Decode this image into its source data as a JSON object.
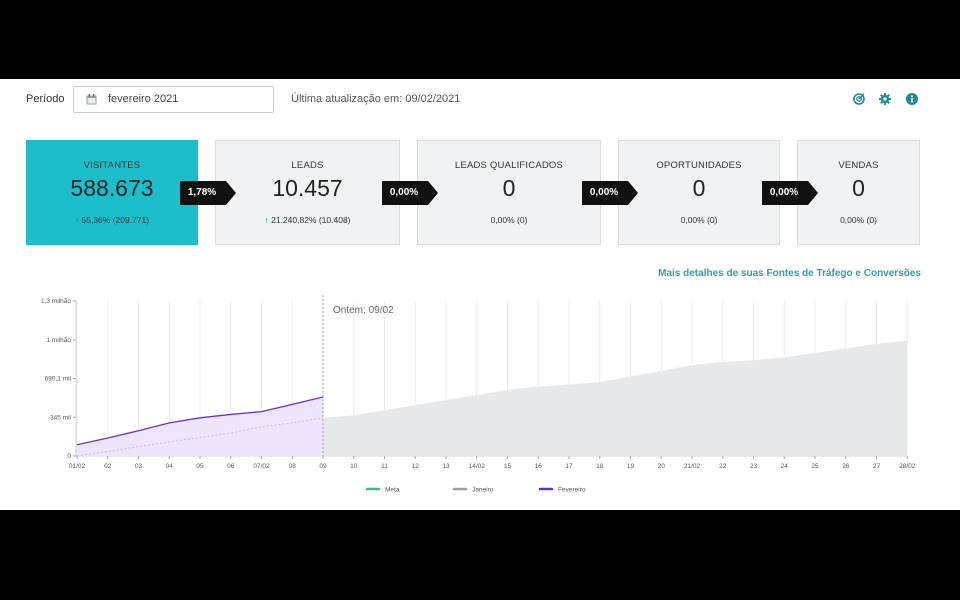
{
  "filter": {
    "periodo_label": "Período",
    "period_value": "fevereiro 2021",
    "update_text": "Última atualização em: 09/02/2021"
  },
  "toolbar": {
    "icons": [
      "target-icon",
      "gear-icon",
      "info-icon"
    ],
    "accent_color": "#1e8a9a"
  },
  "funnel": {
    "cards": [
      {
        "title": "VISITANTES",
        "value": "588.673",
        "sub": "55,36% (209.771)"
      },
      {
        "title": "LEADS",
        "value": "10.457",
        "sub": "21.240,82% (10.408)"
      },
      {
        "title": "LEADS QUALIFICADOS",
        "value": "0",
        "sub": "0,00% (0)"
      },
      {
        "title": "OPORTUNIDADES",
        "value": "0",
        "sub": "0,00% (0)"
      },
      {
        "title": "VENDAS",
        "value": "0",
        "sub": "0,00% (0)"
      }
    ],
    "conversions": [
      "1,78%",
      "0,00%",
      "0,00%",
      "0,00%"
    ],
    "active_color": "#1bbfcc"
  },
  "details_link": "Mais detalhes de suas Fontes de Tráfego e Conversões",
  "chart_data": {
    "type": "area",
    "y_ticks": [
      "0",
      "345 mil",
      "690,1 mil",
      "1 milhão",
      "1,3 milhão"
    ],
    "ylim": [
      0,
      1380000
    ],
    "x_labels": [
      "01/02",
      "02",
      "03",
      "04",
      "05",
      "06",
      "07/02",
      "08",
      "09",
      "10",
      "11",
      "12",
      "13",
      "14/02",
      "15",
      "16",
      "17",
      "18",
      "19",
      "20",
      "21/02",
      "22",
      "23",
      "24",
      "25",
      "26",
      "27",
      "28/02"
    ],
    "annotation": "Ontem: 09/02",
    "annotation_day": 9,
    "series": [
      {
        "name": "Meta",
        "color": "#2ec28a",
        "values": []
      },
      {
        "name": "Janeiro",
        "color": "#9a9ea3",
        "values": [
          0,
          40000,
          85000,
          125000,
          165000,
          205000,
          260000,
          295000,
          340000,
          365000,
          410000,
          455000,
          500000,
          545000,
          590000,
          620000,
          640000,
          660000,
          710000,
          760000,
          810000,
          840000,
          855000,
          880000,
          920000,
          960000,
          1000000,
          1030000
        ]
      },
      {
        "name": "Fevereiro",
        "color": "#6b32c9",
        "values": [
          100000,
          160000,
          225000,
          295000,
          340000,
          370000,
          395000,
          460000,
          525000
        ]
      }
    ]
  }
}
